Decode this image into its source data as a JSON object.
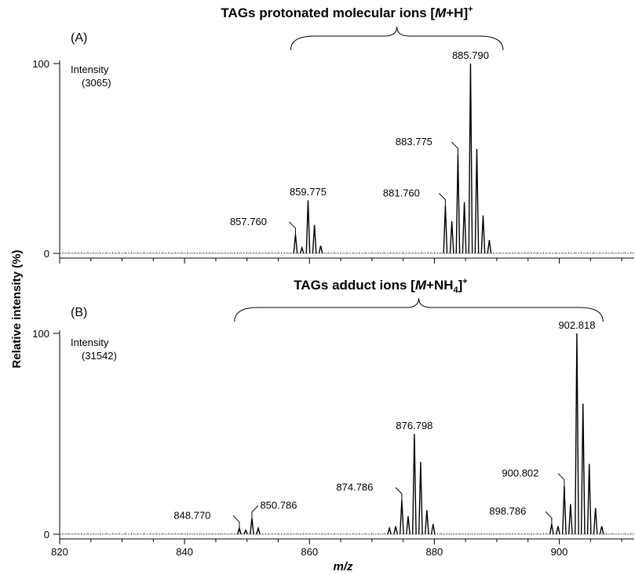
{
  "chart_data": [
    {
      "type": "line",
      "panel_label": "(A)",
      "title_main": "TAGs protonated molecular ions [",
      "title_italic": "M",
      "title_mid": "+H]",
      "title_sup": "+",
      "intensity_label": "Intensity",
      "intensity_value": "(3065)",
      "ylabel": "Relative intensity (%)",
      "xlim": [
        820,
        912
      ],
      "ylim": [
        0,
        100
      ],
      "yticks": [
        "0",
        "100"
      ],
      "bracket_range": [
        857,
        891
      ],
      "peaks": [
        {
          "x": 857.76,
          "y": 10
        },
        {
          "x": 858.8,
          "y": 3
        },
        {
          "x": 859.775,
          "y": 28
        },
        {
          "x": 860.8,
          "y": 15
        },
        {
          "x": 861.8,
          "y": 4
        },
        {
          "x": 881.76,
          "y": 25
        },
        {
          "x": 882.8,
          "y": 17
        },
        {
          "x": 883.775,
          "y": 52
        },
        {
          "x": 884.8,
          "y": 27
        },
        {
          "x": 885.79,
          "y": 100
        },
        {
          "x": 886.8,
          "y": 55
        },
        {
          "x": 887.8,
          "y": 20
        },
        {
          "x": 888.8,
          "y": 7
        }
      ],
      "labels": [
        {
          "text": "857.760",
          "x": 857.76
        },
        {
          "text": "859.775",
          "x": 859.775
        },
        {
          "text": "881.760",
          "x": 881.76
        },
        {
          "text": "883.775",
          "x": 883.775
        },
        {
          "text": "885.790",
          "x": 885.79
        }
      ]
    },
    {
      "type": "line",
      "panel_label": "(B)",
      "title_main": "TAGs adduct ions [",
      "title_italic": "M",
      "title_mid": "+NH",
      "title_sub": "4",
      "title_end": "]",
      "title_sup": "+",
      "intensity_label": "Intensity",
      "intensity_value": "(31542)",
      "xlabel": "m/z",
      "xlim": [
        820,
        912
      ],
      "ylim": [
        0,
        100
      ],
      "yticks": [
        "0",
        "100"
      ],
      "xticks": [
        "820",
        "840",
        "860",
        "880",
        "900"
      ],
      "bracket_range": [
        848,
        907
      ],
      "peaks": [
        {
          "x": 848.77,
          "y": 3
        },
        {
          "x": 849.8,
          "y": 2
        },
        {
          "x": 850.786,
          "y": 8
        },
        {
          "x": 851.8,
          "y": 3
        },
        {
          "x": 872.8,
          "y": 3
        },
        {
          "x": 873.8,
          "y": 4
        },
        {
          "x": 874.786,
          "y": 17
        },
        {
          "x": 875.8,
          "y": 9
        },
        {
          "x": 876.798,
          "y": 50
        },
        {
          "x": 877.8,
          "y": 36
        },
        {
          "x": 878.8,
          "y": 12
        },
        {
          "x": 879.8,
          "y": 5
        },
        {
          "x": 898.786,
          "y": 5
        },
        {
          "x": 899.8,
          "y": 4
        },
        {
          "x": 900.802,
          "y": 24
        },
        {
          "x": 901.8,
          "y": 15
        },
        {
          "x": 902.818,
          "y": 100
        },
        {
          "x": 903.8,
          "y": 65
        },
        {
          "x": 904.8,
          "y": 35
        },
        {
          "x": 905.8,
          "y": 13
        },
        {
          "x": 906.8,
          "y": 4
        }
      ],
      "labels": [
        {
          "text": "848.770",
          "x": 848.77
        },
        {
          "text": "850.786",
          "x": 850.786
        },
        {
          "text": "874.786",
          "x": 874.786
        },
        {
          "text": "876.798",
          "x": 876.798
        },
        {
          "text": "898.786",
          "x": 898.786
        },
        {
          "text": "900.802",
          "x": 900.802
        },
        {
          "text": "902.818",
          "x": 902.818
        }
      ]
    }
  ]
}
